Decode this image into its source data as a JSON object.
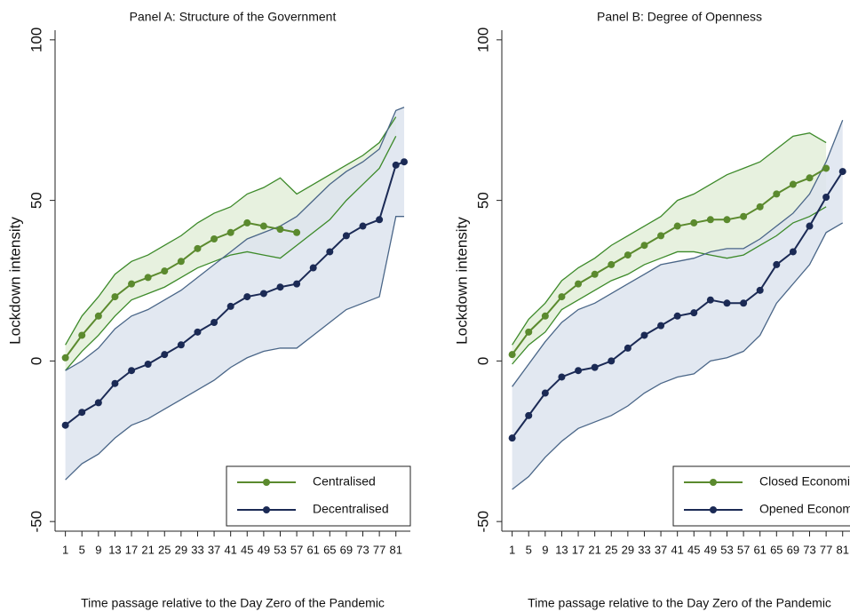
{
  "chart_data": [
    {
      "type": "line",
      "title": "Panel A: Structure of the Government",
      "ylabel": "Lockdown intensity",
      "xlabel": "Time passage relative to the Day Zero of the Pandemic",
      "x": [
        1,
        5,
        9,
        13,
        17,
        21,
        25,
        29,
        33,
        37,
        41,
        45,
        49,
        53,
        57,
        61,
        65,
        69,
        73,
        77,
        81,
        83
      ],
      "xlim": [
        -1.5,
        84.5
      ],
      "xticks": [
        1,
        5,
        9,
        13,
        17,
        21,
        25,
        29,
        33,
        37,
        41,
        45,
        49,
        53,
        57,
        61,
        65,
        69,
        73,
        77,
        81
      ],
      "ylim": [
        -53,
        103
      ],
      "yticks": [
        -50,
        0,
        50,
        100
      ],
      "legend": "lower right",
      "series": [
        {
          "name": "Centralised",
          "color": "#5b8a2e",
          "band_color": "#e3eed9",
          "values": [
            1,
            8,
            14,
            20,
            24,
            26,
            28,
            31,
            35,
            38,
            40,
            43,
            42,
            41,
            40,
            null,
            null,
            null,
            null,
            null,
            null,
            null
          ],
          "lower": [
            -3,
            3,
            8,
            14,
            19,
            21,
            23,
            26,
            29,
            31,
            33,
            34,
            33,
            32,
            36,
            40,
            44,
            50,
            55,
            60,
            70,
            null
          ],
          "upper": [
            5,
            14,
            20,
            27,
            31,
            33,
            36,
            39,
            43,
            46,
            48,
            52,
            54,
            57,
            52,
            55,
            58,
            61,
            64,
            68,
            76,
            null
          ]
        },
        {
          "name": "Decentralised",
          "color": "#1b2a55",
          "band_color": "#dde4ee",
          "values": [
            -20,
            -16,
            -13,
            -7,
            -3,
            -1,
            2,
            5,
            9,
            12,
            17,
            20,
            21,
            23,
            24,
            29,
            34,
            39,
            42,
            44,
            61,
            62
          ],
          "lower": [
            -37,
            -32,
            -29,
            -24,
            -20,
            -18,
            -15,
            -12,
            -9,
            -6,
            -2,
            1,
            3,
            4,
            4,
            8,
            12,
            16,
            18,
            20,
            45,
            45
          ],
          "upper": [
            -3,
            0,
            4,
            10,
            14,
            16,
            19,
            22,
            26,
            30,
            34,
            38,
            40,
            42,
            45,
            50,
            55,
            59,
            62,
            66,
            78,
            79
          ]
        }
      ]
    },
    {
      "type": "line",
      "title": "Panel B: Degree of Openness",
      "ylabel": "Lockdown intensity",
      "xlabel": "Time passage relative to the Day Zero of the Pandemic",
      "x": [
        1,
        5,
        9,
        13,
        17,
        21,
        25,
        29,
        33,
        37,
        41,
        45,
        49,
        53,
        57,
        61,
        65,
        69,
        73,
        77,
        81
      ],
      "xlim": [
        -1.5,
        84.5
      ],
      "xticks": [
        1,
        5,
        9,
        13,
        17,
        21,
        25,
        29,
        33,
        37,
        41,
        45,
        49,
        53,
        57,
        61,
        65,
        69,
        73,
        77,
        81
      ],
      "ylim": [
        -53,
        103
      ],
      "yticks": [
        -50,
        0,
        50,
        100
      ],
      "legend": "lower right",
      "series": [
        {
          "name": "Closed Economies",
          "color": "#5b8a2e",
          "band_color": "#e3eed9",
          "values": [
            2,
            9,
            14,
            20,
            24,
            27,
            30,
            33,
            36,
            39,
            42,
            43,
            44,
            44,
            45,
            48,
            52,
            55,
            57,
            60,
            null
          ],
          "lower": [
            -1,
            5,
            9,
            16,
            19,
            22,
            25,
            27,
            30,
            32,
            34,
            34,
            33,
            32,
            33,
            36,
            39,
            43,
            45,
            48,
            null
          ],
          "upper": [
            5,
            13,
            18,
            25,
            29,
            32,
            36,
            39,
            42,
            45,
            50,
            52,
            55,
            58,
            60,
            62,
            66,
            70,
            71,
            68,
            null
          ]
        },
        {
          "name": "Opened Economies",
          "color": "#1b2a55",
          "band_color": "#dde4ee",
          "values": [
            -24,
            -17,
            -10,
            -5,
            -3,
            -2,
            0,
            4,
            8,
            11,
            14,
            15,
            19,
            18,
            18,
            22,
            30,
            34,
            42,
            51,
            59
          ],
          "lower": [
            -40,
            -36,
            -30,
            -25,
            -21,
            -19,
            -17,
            -14,
            -10,
            -7,
            -5,
            -4,
            0,
            1,
            3,
            8,
            18,
            24,
            30,
            40,
            43
          ],
          "upper": [
            -8,
            -1,
            6,
            12,
            16,
            18,
            21,
            24,
            27,
            30,
            31,
            32,
            34,
            35,
            35,
            38,
            42,
            46,
            52,
            62,
            75
          ]
        }
      ]
    }
  ]
}
